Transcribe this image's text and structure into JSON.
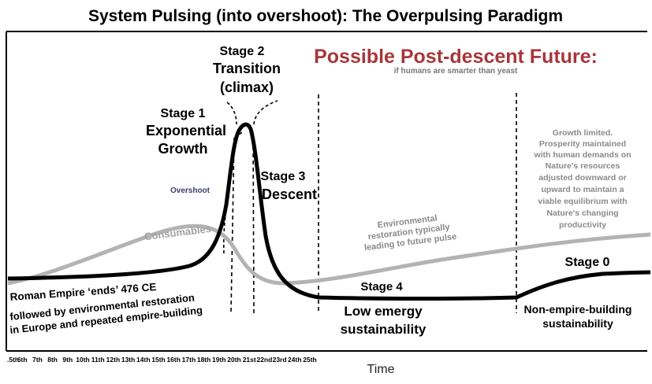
{
  "title": "System Pulsing (into overshoot): The Overpulsing Paradigm",
  "future_heading": "Possible Post-descent Future:",
  "future_subheading": "if humans are smarter than yeast",
  "stages": {
    "stage1": {
      "label": "Stage 1",
      "line1": "Exponential",
      "line2": "Growth"
    },
    "stage2": {
      "label": "Stage 2",
      "line1": "Transition",
      "line2": "(climax)"
    },
    "stage3": {
      "label": "Stage 3",
      "line1": "Descent"
    },
    "stage4": {
      "label": "Stage 4",
      "line1": "Low emergy",
      "line2": "sustainability"
    },
    "stage0": {
      "label": "Stage 0",
      "line1": "Non-empire-building",
      "line2": "sustainability"
    }
  },
  "annotations": {
    "overshoot": "Overshoot",
    "consumables": "Consumables",
    "environmental": [
      "Environmental",
      "restoration typically",
      "leading to future pulse"
    ],
    "growth_limited": [
      "Growth limited.",
      "Prosperity maintained",
      "with human demands on",
      "Nature's resources",
      "adjusted  downward or",
      "upward to maintain a",
      "viable equilibrium with",
      "Nature's changing",
      "productivity"
    ],
    "roman": "Roman Empire ‘ends’ 476 CE",
    "followed": [
      "followed by environmental restoration",
      "in Europe and repeated empire-building"
    ]
  },
  "x_axis": {
    "label": "Time",
    "ticks": [
      ".5th",
      "6th",
      "7th",
      "8th",
      "9th",
      "10th",
      "11th",
      "12th",
      "13th",
      "14th",
      "15th",
      "16th",
      "17th",
      "18th",
      "19th",
      "20th",
      "21st",
      "22nd",
      "23rd",
      "24th",
      "25th"
    ]
  },
  "colors": {
    "future_heading": "#a8363a",
    "consumables_curve": "#b3b3b3",
    "annotation_gray": "#8a8a8a",
    "overshoot": "#3d3d6b"
  }
}
